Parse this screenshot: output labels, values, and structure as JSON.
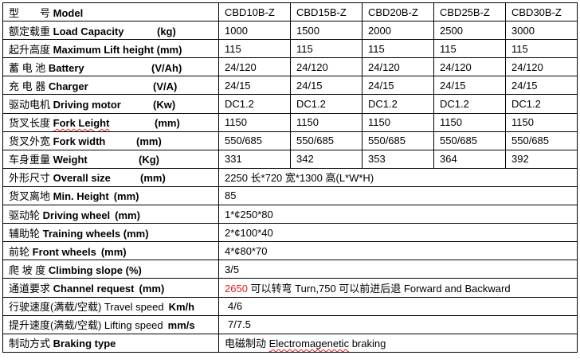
{
  "models": [
    "CBD10B-Z",
    "CBD15B-Z",
    "CBD20B-Z",
    "CBD25B-Z",
    "CBD30B-Z"
  ],
  "header": {
    "cn": "型　　号",
    "en": "Model"
  },
  "rows": [
    {
      "cn": "额定载重",
      "en": "Load Capacity",
      "unit": "(kg)",
      "values": [
        "1000",
        "1500",
        "2000",
        "2500",
        "3000"
      ]
    },
    {
      "cn": "起升高度",
      "en": "Maximum Lift height (mm)",
      "unit": "",
      "values": [
        "115",
        "115",
        "115",
        "115",
        "115"
      ]
    },
    {
      "cn": "蓄 电 池",
      "en": "Battery",
      "unit": "(V/Ah)",
      "values": [
        "24/120",
        "24/120",
        "24/120",
        "24/120",
        "24/120"
      ]
    },
    {
      "cn": "充  电  器",
      "en": "Charger",
      "unit": "(V/A)",
      "values": [
        "24/15",
        "24/15",
        "24/15",
        "24/15",
        "24/15"
      ]
    },
    {
      "cn": "驱动电机",
      "en": "Driving motor",
      "unit": "(Kw)",
      "values": [
        "DC1.2",
        "DC1.2",
        "DC1.2",
        "DC1.2",
        "DC1.2"
      ]
    },
    {
      "cn": "货叉长度",
      "en": "Fork Leight",
      "unit": "(mm)",
      "values": [
        "1150",
        "1150",
        "1150",
        "1150",
        "1150"
      ]
    },
    {
      "cn": "货叉外宽",
      "en": "Fork width",
      "unit": "(mm)",
      "values": [
        "550/685",
        "550/685",
        "550/685",
        "550/685",
        "550/685"
      ]
    },
    {
      "cn": "车身重量",
      "en": "Weight",
      "unit": "(Kg)",
      "values": [
        "331",
        "342",
        "353",
        "364",
        "392"
      ]
    },
    {
      "cn": "外形尺寸",
      "en": "Overall size",
      "unit": "(mm)",
      "value": "2250 长*720 宽*1300 高(L*W*H)"
    },
    {
      "cn": "货叉离地",
      "en": "Min. Height",
      "unit": "(mm)",
      "value": "85"
    },
    {
      "cn": "驱动轮",
      "en": "Driving wheel",
      "unit": "(mm)",
      "value": "1*¢250*80"
    },
    {
      "cn": "辅助轮",
      "en": "Training wheels (mm)",
      "unit": "",
      "value": "2*¢100*40"
    },
    {
      "cn": "前轮",
      "en": "Front wheels",
      "unit": "(mm)",
      "value": "4*¢80*70"
    },
    {
      "cn": "爬  坡  度",
      "en": "Climbing slope (%)",
      "unit": "",
      "value": "3/5"
    },
    {
      "cn": "通道要求",
      "en": "Channel request",
      "unit": "(mm)",
      "value_red": "2650",
      "value": " 可以转弯 Turn,750 可以前进后退 Forward and Backward"
    },
    {
      "cn": "行驶速度(满载/空载)",
      "en": "Travel speed",
      "unit": "Km/h",
      "value": "4/6"
    },
    {
      "cn": "提升速度(满载/空载)",
      "en": "Lifting speed",
      "unit": "mm/s",
      "value": "7/7.5"
    },
    {
      "cn": "制动方式",
      "en": "Braking type",
      "unit": "",
      "value_cn": "电磁制动 ",
      "value_squig": "Electromagenetic",
      "value": " braking"
    }
  ],
  "colors": {
    "border": "#000000",
    "highlight": "#e02020"
  }
}
